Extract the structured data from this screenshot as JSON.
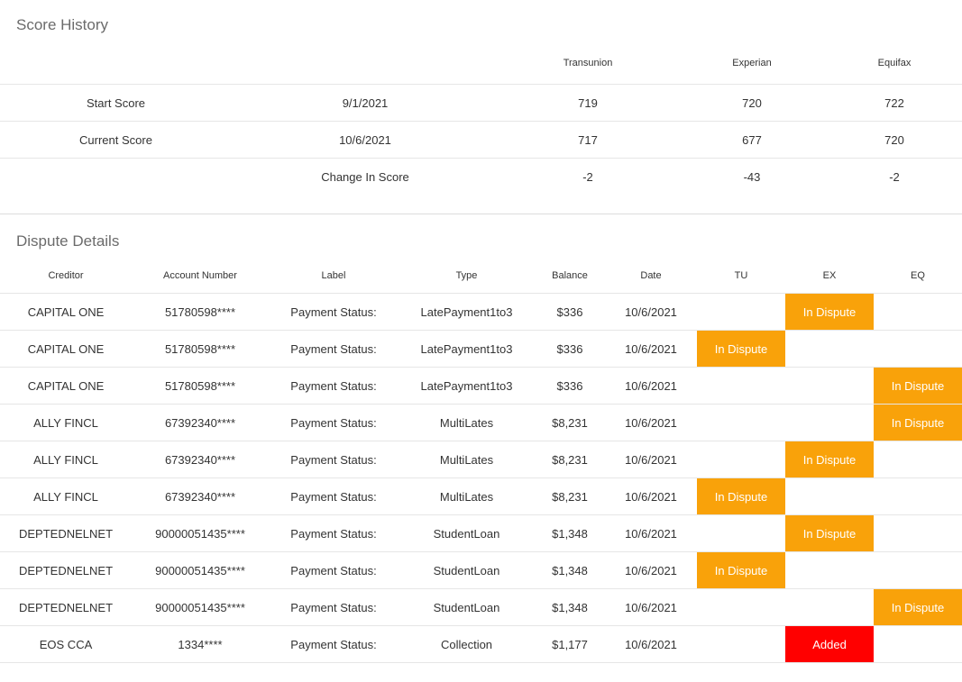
{
  "colors": {
    "in_dispute": "#f9a20a",
    "added": "#ff0000"
  },
  "score_history": {
    "title": "Score History",
    "headers": [
      "",
      "",
      "Transunion",
      "Experian",
      "Equifax"
    ],
    "rows": [
      [
        "Start Score",
        "9/1/2021",
        "719",
        "720",
        "722"
      ],
      [
        "Current Score",
        "10/6/2021",
        "717",
        "677",
        "720"
      ],
      [
        "",
        "Change In Score",
        "-2",
        "-43",
        "-2"
      ]
    ]
  },
  "dispute_details": {
    "title": "Dispute Details",
    "headers": [
      "Creditor",
      "Account Number",
      "Label",
      "Type",
      "Balance",
      "Date",
      "TU",
      "EX",
      "EQ"
    ],
    "rows": [
      [
        "CAPITAL ONE",
        "51780598****",
        "Payment Status:",
        "LatePayment1to3",
        "$336",
        "10/6/2021",
        "",
        "In Dispute",
        ""
      ],
      [
        "CAPITAL ONE",
        "51780598****",
        "Payment Status:",
        "LatePayment1to3",
        "$336",
        "10/6/2021",
        "In Dispute",
        "",
        ""
      ],
      [
        "CAPITAL ONE",
        "51780598****",
        "Payment Status:",
        "LatePayment1to3",
        "$336",
        "10/6/2021",
        "",
        "",
        "In Dispute"
      ],
      [
        "ALLY FINCL",
        "67392340****",
        "Payment Status:",
        "MultiLates",
        "$8,231",
        "10/6/2021",
        "",
        "",
        "In Dispute"
      ],
      [
        "ALLY FINCL",
        "67392340****",
        "Payment Status:",
        "MultiLates",
        "$8,231",
        "10/6/2021",
        "",
        "In Dispute",
        ""
      ],
      [
        "ALLY FINCL",
        "67392340****",
        "Payment Status:",
        "MultiLates",
        "$8,231",
        "10/6/2021",
        "In Dispute",
        "",
        ""
      ],
      [
        "DEPTEDNELNET",
        "90000051435****",
        "Payment Status:",
        "StudentLoan",
        "$1,348",
        "10/6/2021",
        "",
        "In Dispute",
        ""
      ],
      [
        "DEPTEDNELNET",
        "90000051435****",
        "Payment Status:",
        "StudentLoan",
        "$1,348",
        "10/6/2021",
        "In Dispute",
        "",
        ""
      ],
      [
        "DEPTEDNELNET",
        "90000051435****",
        "Payment Status:",
        "StudentLoan",
        "$1,348",
        "10/6/2021",
        "",
        "",
        "In Dispute"
      ],
      [
        "EOS CCA",
        "1334****",
        "Payment Status:",
        "Collection",
        "$1,177",
        "10/6/2021",
        "",
        "Added",
        ""
      ]
    ]
  }
}
